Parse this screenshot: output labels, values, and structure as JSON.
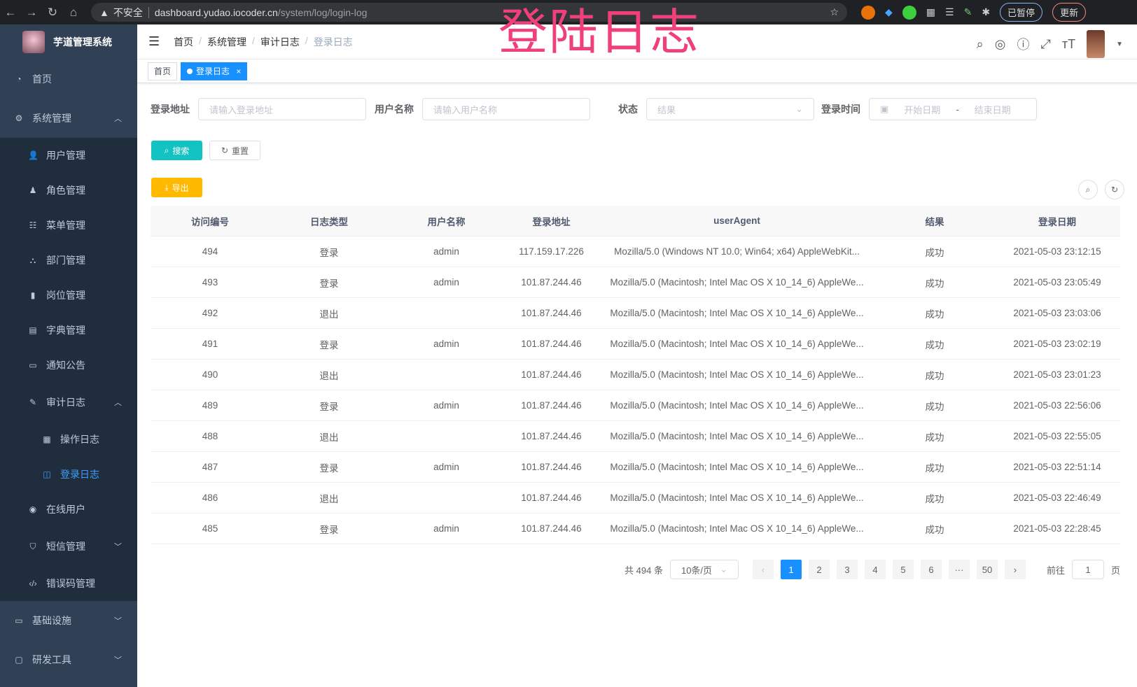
{
  "browser": {
    "insecure": "不安全",
    "url_host": "dashboard.yudao.iocoder.cn",
    "url_path": "/system/log/login-log",
    "paused": "已暂停",
    "update": "更新"
  },
  "overlay_title": "登陆日志",
  "app_title": "芋道管理系统",
  "sidebar": {
    "items": [
      {
        "label": "首页",
        "level": "top",
        "icon": "dashboard-icon"
      },
      {
        "label": "系统管理",
        "level": "top",
        "icon": "gear-icon",
        "chevron": "up"
      },
      {
        "label": "用户管理",
        "level": "sub",
        "icon": "user-icon"
      },
      {
        "label": "角色管理",
        "level": "sub",
        "icon": "role-icon"
      },
      {
        "label": "菜单管理",
        "level": "sub",
        "icon": "menu-icon"
      },
      {
        "label": "部门管理",
        "level": "sub",
        "icon": "tree-icon"
      },
      {
        "label": "岗位管理",
        "level": "sub",
        "icon": "post-icon"
      },
      {
        "label": "字典管理",
        "level": "sub",
        "icon": "dict-icon"
      },
      {
        "label": "通知公告",
        "level": "sub",
        "icon": "message-icon"
      },
      {
        "label": "审计日志",
        "level": "subtitle",
        "icon": "edit-icon",
        "chevron": "up"
      },
      {
        "label": "操作日志",
        "level": "sub2",
        "icon": "form-icon"
      },
      {
        "label": "登录日志",
        "level": "sub2",
        "icon": "logininfor-icon",
        "active": true
      },
      {
        "label": "在线用户",
        "level": "sub",
        "icon": "online-icon"
      },
      {
        "label": "短信管理",
        "level": "subtitle",
        "icon": "shield-icon",
        "chevron": "down"
      },
      {
        "label": "错误码管理",
        "level": "sub",
        "icon": "code-icon"
      },
      {
        "label": "基础设施",
        "level": "top",
        "icon": "monitor-icon",
        "chevron": "down"
      },
      {
        "label": "研发工具",
        "level": "top",
        "icon": "tool-icon",
        "chevron": "down"
      }
    ]
  },
  "breadcrumb": [
    "首页",
    "系统管理",
    "审计日志",
    "登录日志"
  ],
  "tags": [
    {
      "label": "首页"
    },
    {
      "label": "登录日志",
      "close": "×"
    }
  ],
  "filters": {
    "login_address": {
      "label": "登录地址",
      "placeholder": "请输入登录地址"
    },
    "username": {
      "label": "用户名称",
      "placeholder": "请输入用户名称"
    },
    "status": {
      "label": "状态",
      "placeholder": "结果"
    },
    "login_time": {
      "label": "登录时间",
      "start": "开始日期",
      "sep": "-",
      "end": "结束日期"
    }
  },
  "buttons": {
    "search": "搜索",
    "reset": "重置",
    "export": "导出"
  },
  "colors": {
    "sidebar": "#304156",
    "primary": "#1890ff",
    "search": "#13c2c2",
    "export": "#ffba00",
    "overlay": "#f0407a"
  },
  "table": {
    "headers": [
      "访问编号",
      "日志类型",
      "用户名称",
      "登录地址",
      "userAgent",
      "结果",
      "登录日期"
    ],
    "rows": [
      [
        "494",
        "登录",
        "admin",
        "117.159.17.226",
        "Mozilla/5.0 (Windows NT 10.0; Win64; x64) AppleWebKit...",
        "成功",
        "2021-05-03 23:12:15"
      ],
      [
        "493",
        "登录",
        "admin",
        "101.87.244.46",
        "Mozilla/5.0 (Macintosh; Intel Mac OS X 10_14_6) AppleWe...",
        "成功",
        "2021-05-03 23:05:49"
      ],
      [
        "492",
        "退出",
        "",
        "101.87.244.46",
        "Mozilla/5.0 (Macintosh; Intel Mac OS X 10_14_6) AppleWe...",
        "成功",
        "2021-05-03 23:03:06"
      ],
      [
        "491",
        "登录",
        "admin",
        "101.87.244.46",
        "Mozilla/5.0 (Macintosh; Intel Mac OS X 10_14_6) AppleWe...",
        "成功",
        "2021-05-03 23:02:19"
      ],
      [
        "490",
        "退出",
        "",
        "101.87.244.46",
        "Mozilla/5.0 (Macintosh; Intel Mac OS X 10_14_6) AppleWe...",
        "成功",
        "2021-05-03 23:01:23"
      ],
      [
        "489",
        "登录",
        "admin",
        "101.87.244.46",
        "Mozilla/5.0 (Macintosh; Intel Mac OS X 10_14_6) AppleWe...",
        "成功",
        "2021-05-03 22:56:06"
      ],
      [
        "488",
        "退出",
        "",
        "101.87.244.46",
        "Mozilla/5.0 (Macintosh; Intel Mac OS X 10_14_6) AppleWe...",
        "成功",
        "2021-05-03 22:55:05"
      ],
      [
        "487",
        "登录",
        "admin",
        "101.87.244.46",
        "Mozilla/5.0 (Macintosh; Intel Mac OS X 10_14_6) AppleWe...",
        "成功",
        "2021-05-03 22:51:14"
      ],
      [
        "486",
        "退出",
        "",
        "101.87.244.46",
        "Mozilla/5.0 (Macintosh; Intel Mac OS X 10_14_6) AppleWe...",
        "成功",
        "2021-05-03 22:46:49"
      ],
      [
        "485",
        "登录",
        "admin",
        "101.87.244.46",
        "Mozilla/5.0 (Macintosh; Intel Mac OS X 10_14_6) AppleWe...",
        "成功",
        "2021-05-03 22:28:45"
      ]
    ]
  },
  "pagination": {
    "total": "共 494 条",
    "page_size": "10条/页",
    "pages": [
      "1",
      "2",
      "3",
      "4",
      "5",
      "6",
      "···",
      "50"
    ],
    "current": "1",
    "prev": "‹",
    "next": "›",
    "goto_label": "前往",
    "goto_value": "1",
    "goto_suffix": "页"
  }
}
